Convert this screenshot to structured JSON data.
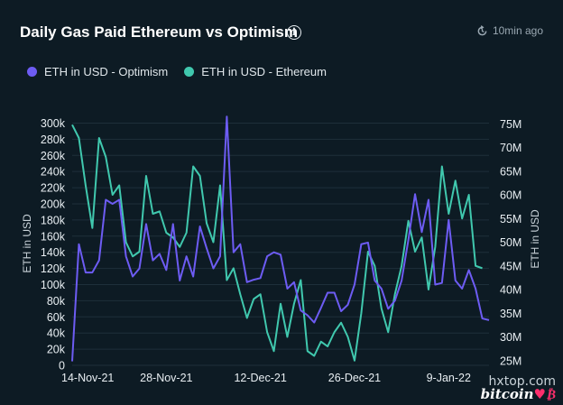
{
  "header": {
    "title": "Daily Gas Paid Ethereum vs Optimism",
    "info_icon": "info-icon",
    "refresh_icon": "refresh-icon",
    "updated": "10min ago"
  },
  "watermark": {
    "top": "hxtop.com",
    "bottom": "bitcoin",
    "logo": "heart-bitcoin-icon"
  },
  "colors": {
    "optimism": "#6d5cf3",
    "ethereum": "#40c8ae",
    "background": "#0d1b24"
  },
  "chart_data": {
    "type": "line",
    "title": "Daily Gas Paid Ethereum vs Optimism",
    "ylabel_left": "ETH in USD",
    "ylabel_right": "ETH in USD",
    "y_left_range": [
      0,
      305000
    ],
    "y_right_range": [
      24000,
      76000
    ],
    "y_left_ticks": [
      "0",
      "20k",
      "40k",
      "60k",
      "80k",
      "100k",
      "120k",
      "140k",
      "160k",
      "180k",
      "200k",
      "220k",
      "240k",
      "260k",
      "280k",
      "300k"
    ],
    "y_right_ticks": [
      "25M",
      "30M",
      "35M",
      "40M",
      "45M",
      "50M",
      "55M",
      "60M",
      "65M",
      "70M",
      "75M"
    ],
    "x_tick_labels": [
      "14-Nov-21",
      "28-Nov-21",
      "12-Dec-21",
      "26-Dec-21",
      "9-Jan-22"
    ],
    "x_tick_index": [
      0,
      14,
      28,
      42,
      56
    ],
    "legend_position": "top-left",
    "grid": true,
    "series": [
      {
        "name": "ETH in USD - Optimism",
        "axis": "left",
        "color": "#6d5cf3",
        "values": [
          5000,
          150000,
          115000,
          115000,
          130000,
          205000,
          200000,
          205000,
          135000,
          110000,
          120000,
          175000,
          130000,
          138000,
          118000,
          175000,
          105000,
          135000,
          110000,
          172000,
          145000,
          120000,
          135000,
          308000,
          140000,
          150000,
          103000,
          106000,
          108000,
          135000,
          140000,
          137000,
          95000,
          103000,
          68000,
          62000,
          53000,
          71000,
          90000,
          90000,
          67000,
          75000,
          100000,
          150000,
          152000,
          105000,
          95000,
          70000,
          80000,
          105000,
          155000,
          212000,
          165000,
          205000,
          100000,
          102000,
          180000,
          105000,
          95000,
          118000,
          95000,
          58000,
          56000
        ]
      },
      {
        "name": "ETH in USD - Ethereum",
        "axis": "right",
        "color": "#40c8ae",
        "values": [
          74800,
          72000,
          62000,
          53000,
          72000,
          68000,
          60000,
          62000,
          50000,
          47000,
          48000,
          64000,
          56000,
          56500,
          52000,
          51000,
          49000,
          52000,
          66000,
          64000,
          54000,
          50000,
          62000,
          42000,
          44500,
          39000,
          34000,
          38000,
          39000,
          31000,
          27000,
          37000,
          30000,
          37000,
          42000,
          27000,
          26000,
          29000,
          28000,
          31000,
          33000,
          30000,
          25000,
          35000,
          48000,
          45000,
          36000,
          31000,
          39000,
          45000,
          54500,
          48000,
          51000,
          40000,
          49000,
          66000,
          56000,
          63000,
          55000,
          60000,
          45000,
          44500
        ]
      }
    ]
  }
}
